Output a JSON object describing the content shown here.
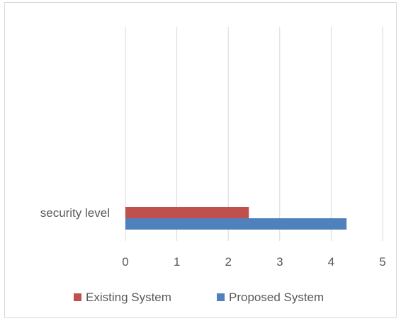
{
  "chart_data": {
    "type": "bar",
    "orientation": "horizontal",
    "categories": [
      "security level"
    ],
    "series": [
      {
        "name": "Existing System",
        "values": [
          2.4
        ],
        "color": "#c0504d"
      },
      {
        "name": "Proposed System",
        "values": [
          4.3
        ],
        "color": "#4f81bd"
      }
    ],
    "xlim": [
      0,
      5
    ],
    "x_ticks": [
      "0",
      "1",
      "2",
      "3",
      "4",
      "5"
    ],
    "grid": "vertical",
    "legend_position": "bottom"
  }
}
